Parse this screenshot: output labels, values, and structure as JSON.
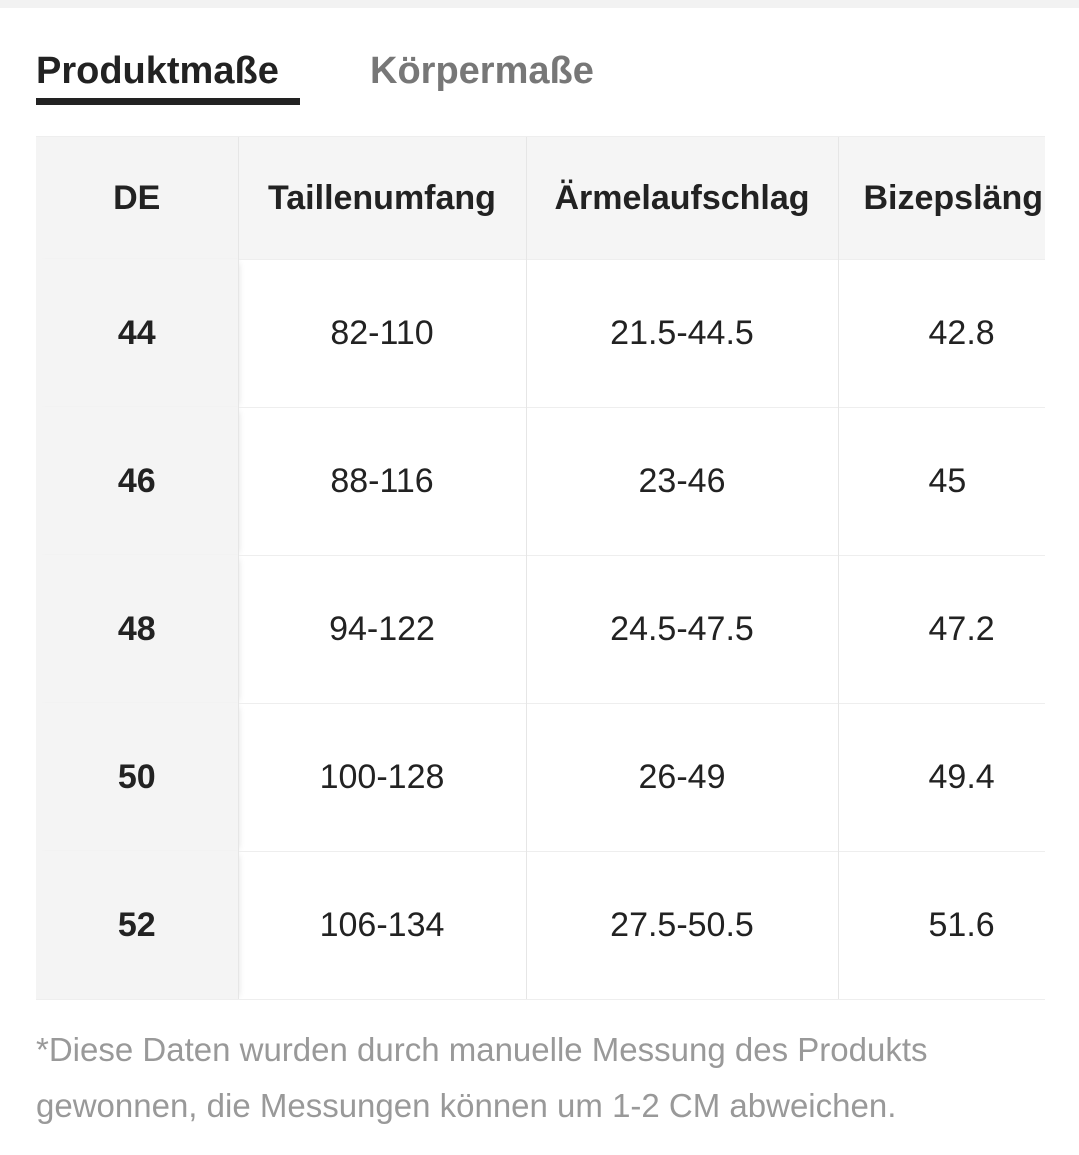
{
  "tabs": [
    {
      "label": "Produktmaße",
      "active": true
    },
    {
      "label": "Körpermaße",
      "active": false
    }
  ],
  "table": {
    "header": [
      "DE",
      "Taillenumfang",
      "Ärmelaufschlag",
      "Bizepsläng"
    ],
    "rows": [
      [
        "44",
        "82-110",
        "21.5-44.5",
        "42.8"
      ],
      [
        "46",
        "88-116",
        "23-46",
        "45"
      ],
      [
        "48",
        "94-122",
        "24.5-47.5",
        "47.2"
      ],
      [
        "50",
        "100-128",
        "26-49",
        "49.4"
      ],
      [
        "52",
        "106-134",
        "27.5-50.5",
        "51.6"
      ]
    ]
  },
  "footnote": {
    "lines": [
      "*Diese Daten wurden durch manuelle Messung des Produkts",
      "gewonnen, die Messungen können um 1-2 CM abweichen."
    ]
  }
}
